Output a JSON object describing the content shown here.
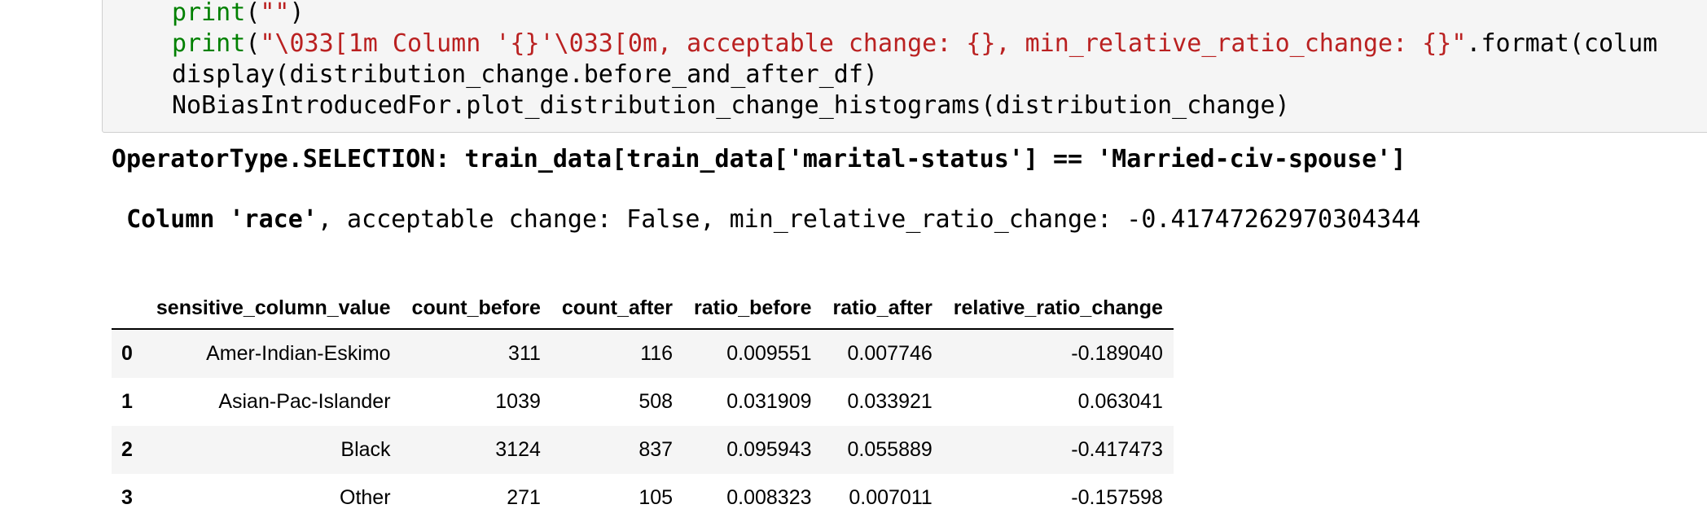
{
  "code_cell": {
    "line1": {
      "fn": "print",
      "open": "(",
      "str": "\"\"",
      "close": ")"
    },
    "line2": {
      "fn": "print",
      "open": "(",
      "str": "\"\\033[1m Column '{}'\\033[0m, acceptable change: {}, min_relative_ratio_change: {}\"",
      "rest": ".format(colum"
    },
    "line3": "display(distribution_change.before_and_after_df)",
    "line4": "NoBiasIntroducedFor.plot_distribution_change_histograms(distribution_change)"
  },
  "output": {
    "operator_line": "OperatorType.SELECTION: train_data[train_data['marital-status'] == 'Married-civ-spouse']",
    "column_label": "Column 'race'",
    "column_details": ", acceptable change: False, min_relative_ratio_change: -0.41747262970304344"
  },
  "table": {
    "headers": [
      "",
      "sensitive_column_value",
      "count_before",
      "count_after",
      "ratio_before",
      "ratio_after",
      "relative_ratio_change"
    ],
    "rows": [
      {
        "index": "0",
        "cells": [
          "Amer-Indian-Eskimo",
          "311",
          "116",
          "0.009551",
          "0.007746",
          "-0.189040"
        ]
      },
      {
        "index": "1",
        "cells": [
          "Asian-Pac-Islander",
          "1039",
          "508",
          "0.031909",
          "0.033921",
          "0.063041"
        ]
      },
      {
        "index": "2",
        "cells": [
          "Black",
          "3124",
          "837",
          "0.095943",
          "0.055889",
          "-0.417473"
        ]
      },
      {
        "index": "3",
        "cells": [
          "Other",
          "271",
          "105",
          "0.008323",
          "0.007011",
          "-0.157598"
        ]
      }
    ]
  }
}
